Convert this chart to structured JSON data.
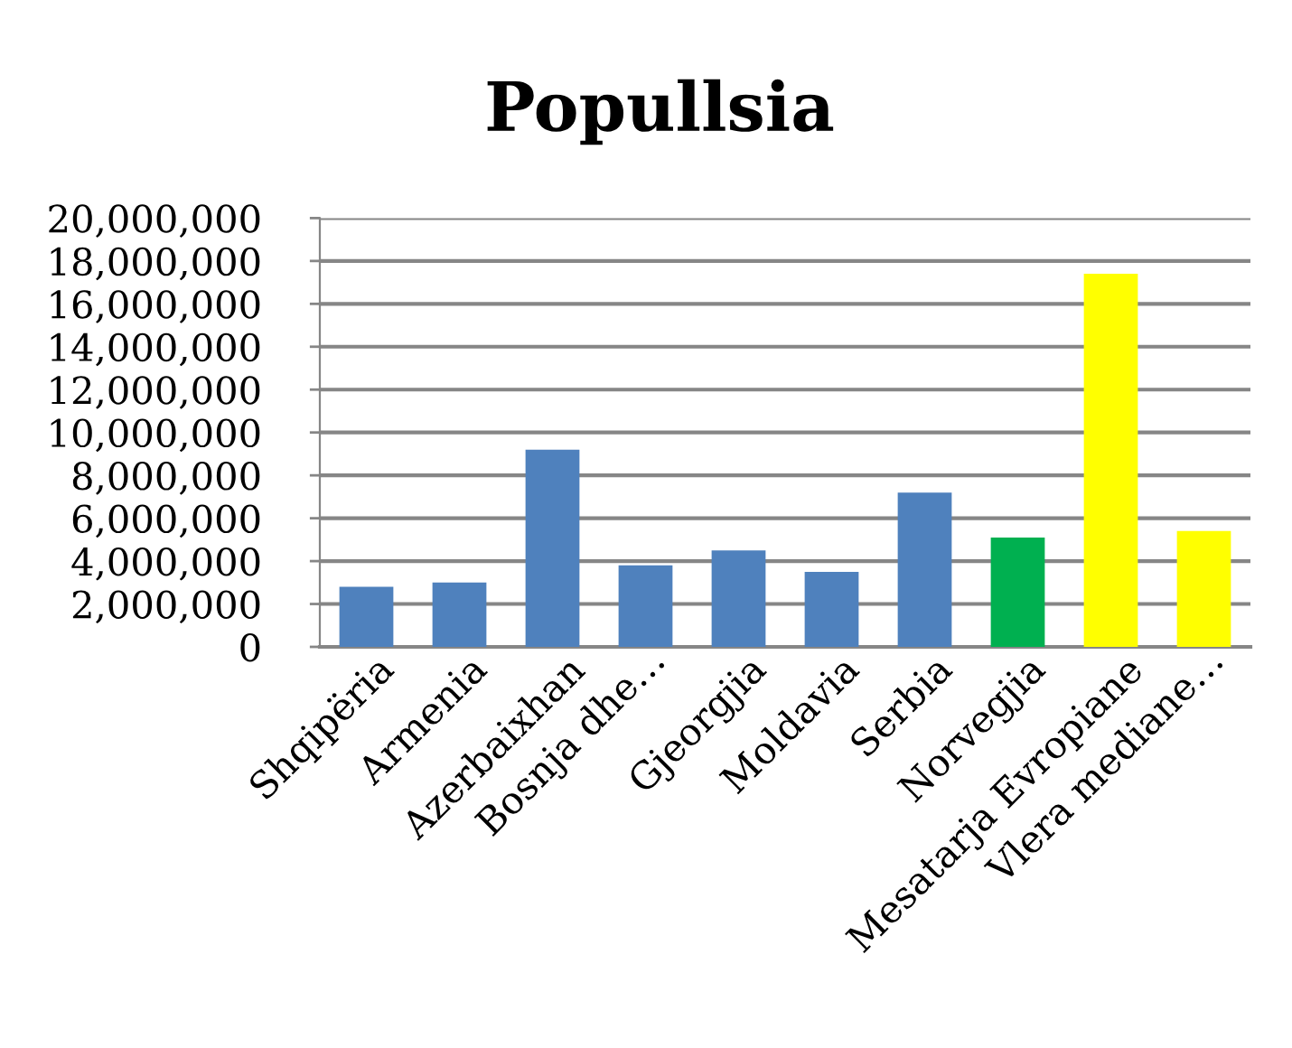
{
  "chart_data": {
    "type": "bar",
    "title": "Popullsia",
    "categories": [
      "Shqipëria",
      "Armenia",
      "Azerbaixhan",
      "Bosnja dhe…",
      "Gjeorgjia",
      "Moldavia",
      "Serbia",
      "Norvegjia",
      "Mesatarja Evropiane",
      "Vlera mediane…"
    ],
    "values": [
      2800000,
      3000000,
      9200000,
      3800000,
      4500000,
      3500000,
      7200000,
      5100000,
      17400000,
      5400000
    ],
    "colors": [
      "#4f81bd",
      "#4f81bd",
      "#4f81bd",
      "#4f81bd",
      "#4f81bd",
      "#4f81bd",
      "#4f81bd",
      "#00b050",
      "#ffff00",
      "#ffff00"
    ],
    "ylim": [
      0,
      20000000
    ],
    "yticks": [
      {
        "value": 0,
        "label": "0"
      },
      {
        "value": 2000000,
        "label": "2,000,000"
      },
      {
        "value": 4000000,
        "label": "4,000,000"
      },
      {
        "value": 6000000,
        "label": "6,000,000"
      },
      {
        "value": 8000000,
        "label": "8,000,000"
      },
      {
        "value": 10000000,
        "label": "10,000,000"
      },
      {
        "value": 12000000,
        "label": "12,000,000"
      },
      {
        "value": 14000000,
        "label": "14,000,000"
      },
      {
        "value": 16000000,
        "label": "16,000,000"
      },
      {
        "value": 18000000,
        "label": "18,000,000"
      },
      {
        "value": 20000000,
        "label": "20,000,000"
      }
    ],
    "grid": "y"
  }
}
